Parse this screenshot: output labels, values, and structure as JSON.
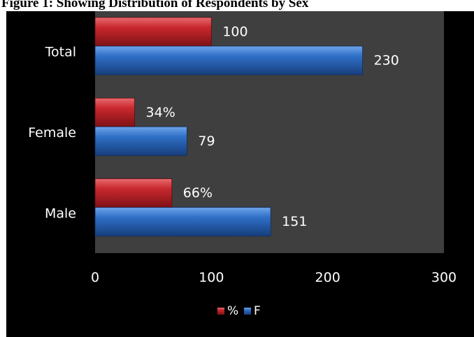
{
  "figure": {
    "title": "Figure 1: Showing Distribution of Respondents by Sex"
  },
  "chart_data": {
    "type": "bar",
    "orientation": "horizontal",
    "categories": [
      "Male",
      "Female",
      "Total"
    ],
    "series": [
      {
        "name": "%",
        "values": [
          66,
          34,
          100
        ],
        "data_labels": [
          "66%",
          "34%",
          "100"
        ],
        "color": "#c8282e"
      },
      {
        "name": "F",
        "values": [
          151,
          79,
          230
        ],
        "data_labels": [
          "151",
          "79",
          "230"
        ],
        "color": "#2a6fc4"
      }
    ],
    "xlim": [
      0,
      300
    ],
    "xticks": [
      "0",
      "100",
      "200",
      "300"
    ],
    "legend": {
      "position": "bottom",
      "entries": [
        "%",
        "F"
      ]
    },
    "plot_background": "#3f3f3f",
    "chart_background": "#000000",
    "grid": false
  }
}
